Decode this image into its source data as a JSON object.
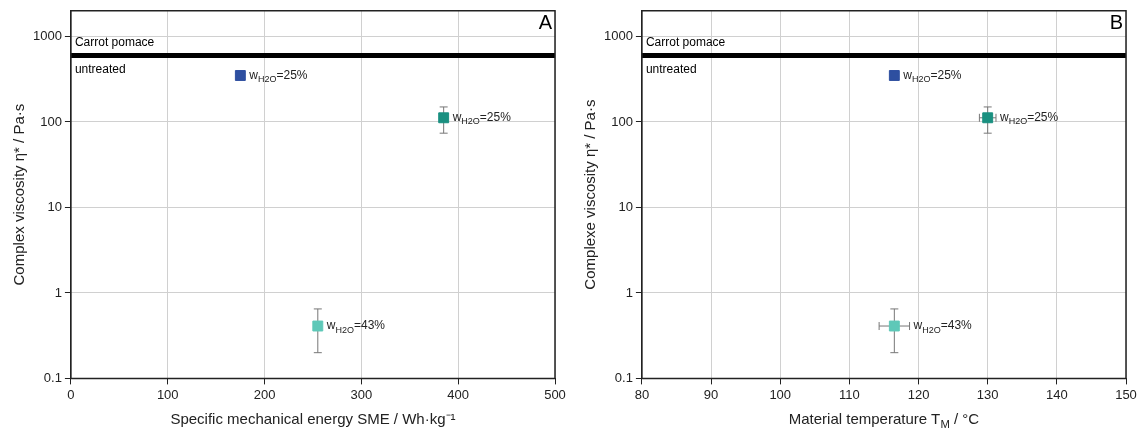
{
  "chart_data": [
    {
      "type": "scatter",
      "title": "A",
      "xlabel": "Specific mechanical energy SME / Wh·kg⁻¹",
      "ylabel": "Complex viscosity η* / Pa·s",
      "xlim": [
        0,
        500
      ],
      "xticks": [
        0,
        100,
        200,
        300,
        400,
        500
      ],
      "ylim": [
        0.1,
        2000
      ],
      "yticks": [
        0.1,
        1,
        10,
        100,
        1000
      ],
      "log": "y",
      "grid": true,
      "legend": false,
      "marker": "square",
      "series": [
        {
          "color": "#2e4fa0",
          "x": [
            175
          ],
          "values": [
            350
          ],
          "errors": [
            null
          ],
          "xerrors": [
            null
          ]
        },
        {
          "color": "#1a9080",
          "x": [
            385
          ],
          "values": [
            112
          ],
          "errors": [
            [
              74,
              150
            ]
          ],
          "xerrors": [
            null
          ]
        },
        {
          "color": "#5ec8b8",
          "x": [
            255
          ],
          "values": [
            0.41
          ],
          "errors": [
            [
              0.2,
              0.65
            ]
          ],
          "xerrors": [
            null
          ]
        }
      ],
      "ref_lines": [
        {
          "axis": "y",
          "value": 600,
          "color": "#000000",
          "label": "Carrot pomace\nuntreated"
        }
      ],
      "annotations": [
        {
          "text": "w$_{H2O}$=25%",
          "x": 175,
          "y": 350
        },
        {
          "text": "w$_{H2O}$=25%",
          "x": 385,
          "y": 112
        },
        {
          "text": "w$_{H2O}$=43%",
          "x": 255,
          "y": 0.41
        }
      ]
    },
    {
      "type": "scatter",
      "title": "B",
      "xlabel": "Material temperature T$_{M}$ / °C",
      "ylabel": "Complexe viscosity η* / Pa·s",
      "xlim": [
        80,
        150
      ],
      "xticks": [
        80,
        90,
        100,
        110,
        120,
        130,
        140,
        150
      ],
      "ylim": [
        0.1,
        2000
      ],
      "yticks": [
        0.1,
        1,
        10,
        100,
        1000
      ],
      "log": "y",
      "grid": true,
      "legend": false,
      "marker": "square",
      "series": [
        {
          "color": "#2e4fa0",
          "x": [
            116.5
          ],
          "values": [
            350
          ],
          "errors": [
            null
          ],
          "xerrors": [
            null
          ]
        },
        {
          "color": "#1a9080",
          "x": [
            130
          ],
          "values": [
            112
          ],
          "errors": [
            [
              74,
              150
            ]
          ],
          "xerrors": [
            1.2
          ]
        },
        {
          "color": "#5ec8b8",
          "x": [
            116.5
          ],
          "values": [
            0.41
          ],
          "errors": [
            [
              0.2,
              0.65
            ]
          ],
          "xerrors": [
            2.2
          ]
        }
      ],
      "ref_lines": [
        {
          "axis": "y",
          "value": 600,
          "color": "#000000",
          "label": "Carrot pomace\nuntreated"
        }
      ],
      "annotations": [
        {
          "text": "w$_{H2O}$=25%",
          "x": 116.5,
          "y": 350
        },
        {
          "text": "w$_{H2O}$=25%",
          "x": 130,
          "y": 112
        },
        {
          "text": "w$_{H2O}$=43%",
          "x": 116.5,
          "y": 0.41
        }
      ]
    }
  ]
}
